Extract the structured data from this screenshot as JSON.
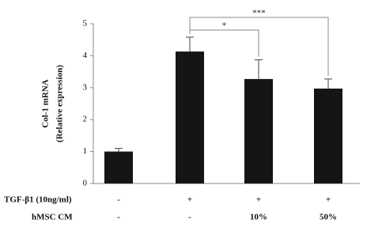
{
  "chart_data": {
    "type": "bar",
    "categories": [
      null,
      null,
      null,
      null
    ],
    "values": [
      1.0,
      4.13,
      3.27,
      2.97
    ],
    "errors": [
      0.1,
      0.45,
      0.6,
      0.3
    ],
    "color": "#151515",
    "ylim": [
      0,
      5
    ],
    "yticks": [
      0,
      1,
      2,
      3,
      4,
      5
    ],
    "ylabel": [
      "Col-1 mRNA",
      "(Relative expression)"
    ],
    "annotations": [
      {
        "label": "*"
      },
      {
        "label": "***"
      }
    ],
    "conditions": [
      {
        "label": "TGF-β1 (10ng/ml)",
        "values": [
          "-",
          "+",
          "+",
          "+"
        ]
      },
      {
        "label": "hMSC CM",
        "values": [
          "-",
          "-",
          "10%",
          "50%"
        ]
      }
    ]
  }
}
